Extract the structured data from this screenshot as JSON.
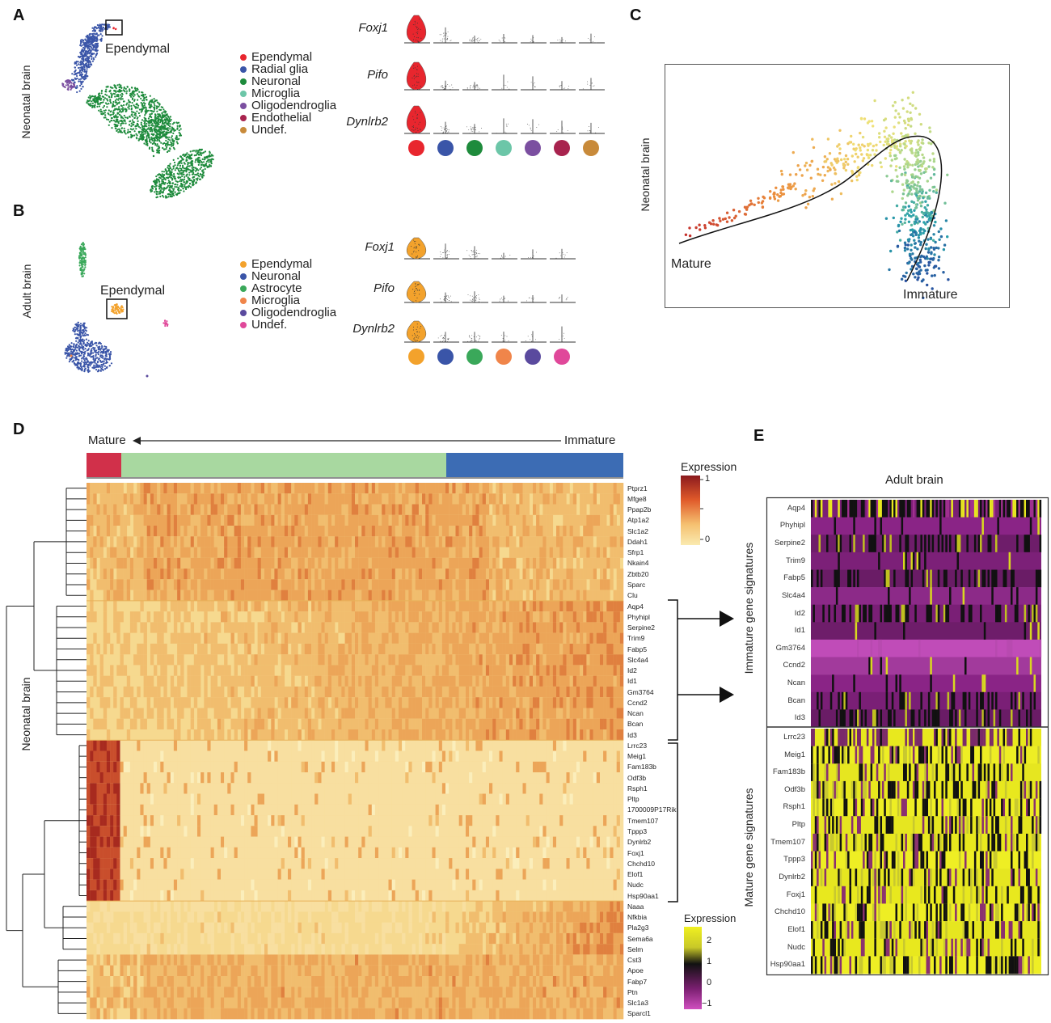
{
  "panels": {
    "A": "A",
    "B": "B",
    "C": "C",
    "D": "D",
    "E": "E"
  },
  "panelA": {
    "ylabel": "Neonatal brain",
    "callout": "Ependymal",
    "legend": [
      {
        "label": "Ependymal",
        "color": "#e8262e"
      },
      {
        "label": "Radial glia",
        "color": "#3a55a8"
      },
      {
        "label": "Neuronal",
        "color": "#1e8b3c"
      },
      {
        "label": "Microglia",
        "color": "#6cc6a8"
      },
      {
        "label": "Oligodendroglia",
        "color": "#7b4fa0"
      },
      {
        "label": "Endothelial",
        "color": "#a8234e"
      },
      {
        "label": "Undef.",
        "color": "#c88a3a"
      }
    ],
    "genes": [
      "Foxj1",
      "Pifo",
      "Dynlrb2"
    ]
  },
  "panelB": {
    "ylabel": "Adult  brain",
    "callout": "Ependymal",
    "legend": [
      {
        "label": "Ependymal",
        "color": "#f3a22c"
      },
      {
        "label": "Neuronal",
        "color": "#3a55a8"
      },
      {
        "label": "Astrocyte",
        "color": "#3aa85a"
      },
      {
        "label": "Microglia",
        "color": "#f0854a"
      },
      {
        "label": "Oligodendroglia",
        "color": "#5a4a9e"
      },
      {
        "label": "Undef.",
        "color": "#e0489a"
      }
    ],
    "genes": [
      "Foxj1",
      "Pifo",
      "Dynlrb2"
    ]
  },
  "panelC": {
    "ylabel": "Neonatal brain",
    "start_label": "Mature",
    "end_label": "Immature"
  },
  "panelD": {
    "ylabel": "Neonatal brain",
    "mature_label": "Mature",
    "immature_label": "Immature",
    "legend_title": "Expression",
    "legend_ticks": [
      "1",
      "0"
    ],
    "colors": {
      "mature": "#d1304a",
      "mid": "#a8d8a0",
      "immature": "#3c6cb4"
    },
    "genes": [
      "Ptprz1",
      "Mfge8",
      "Ppap2b",
      "Atp1a2",
      "Slc1a2",
      "Ddah1",
      "Sfrp1",
      "Nkain4",
      "Zbtb20",
      "Sparc",
      "Clu",
      "Aqp4",
      "Phyhipl",
      "Serpine2",
      "Trim9",
      "Fabp5",
      "Slc4a4",
      "Id2",
      "Id1",
      "Gm3764",
      "Ccnd2",
      "Ncan",
      "Bcan",
      "Id3",
      "Lrrc23",
      "Meig1",
      "Fam183b",
      "Odf3b",
      "Rsph1",
      "Pltp",
      "1700009P17Rik",
      "Tmem107",
      "Tppp3",
      "Dynlrb2",
      "Foxj1",
      "Chchd10",
      "Elof1",
      "Nudc",
      "Hsp90aa1",
      "Naaa",
      "Nfkbia",
      "Pla2g3",
      "Sema6a",
      "Selm",
      "Cst3",
      "Apoe",
      "Fabp7",
      "Ptn",
      "Slc1a3",
      "Sparcl1"
    ]
  },
  "panelE": {
    "title": "Adult brain",
    "immature_label": "Immature gene signatures",
    "mature_label": "Mature gene signatures",
    "legend_title": "Expression",
    "legend_ticks": [
      "2",
      "1",
      "0",
      "−1"
    ],
    "immature_genes": [
      "Aqp4",
      "Phyhipl",
      "Serpine2",
      "Trim9",
      "Fabp5",
      "Slc4a4",
      "Id2",
      "Id1",
      "Gm3764",
      "Ccnd2",
      "Ncan",
      "Bcan",
      "Id3"
    ],
    "mature_genes": [
      "Lrrc23",
      "Meig1",
      "Fam183b",
      "Odf3b",
      "Rsph1",
      "Pltp",
      "Tmem107",
      "Tppp3",
      "Dynlrb2",
      "Foxj1",
      "Chchd10",
      "Elof1",
      "Nudc",
      "Hsp90aa1"
    ]
  }
}
